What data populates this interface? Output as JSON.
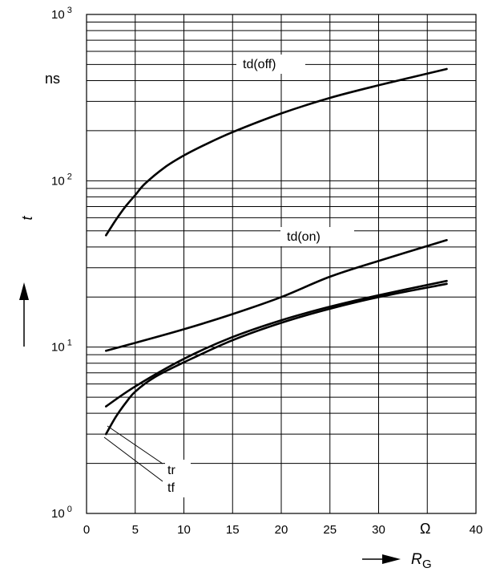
{
  "chart_data": {
    "type": "line",
    "x_scale": "linear",
    "y_scale": "log",
    "xlim": [
      0,
      40
    ],
    "ylim": [
      1,
      1000
    ],
    "grid": true,
    "x_ticks": [
      "0",
      "5",
      "10",
      "15",
      "20",
      "25",
      "30",
      "40"
    ],
    "x_unit": "Ω",
    "xlabel": "R",
    "xlabel_sub": "G",
    "y_ticks": [
      {
        "base": "10",
        "exp": "0",
        "value": 1
      },
      {
        "base": "10",
        "exp": "1",
        "value": 10
      },
      {
        "base": "10",
        "exp": "2",
        "value": 100
      },
      {
        "base": "10",
        "exp": "3",
        "value": 1000
      }
    ],
    "y_unit": "ns",
    "ylabel": "t",
    "series": [
      {
        "name": "td(off)",
        "x": [
          2,
          3,
          4,
          5,
          6,
          8,
          10,
          12,
          15,
          20,
          25,
          30,
          37
        ],
        "y": [
          47,
          58,
          70,
          82,
          96,
          120,
          142,
          163,
          196,
          254,
          315,
          375,
          470
        ]
      },
      {
        "name": "td(on)",
        "x": [
          2,
          5,
          10,
          15,
          20,
          25,
          30,
          37
        ],
        "y": [
          9.5,
          10.6,
          12.8,
          15.8,
          20,
          26.5,
          33,
          44
        ]
      },
      {
        "name": "tr",
        "x": [
          2,
          5,
          10,
          15,
          20,
          25,
          30,
          37
        ],
        "y": [
          4.4,
          5.8,
          8.5,
          11.5,
          14.5,
          17.5,
          20.5,
          25
        ]
      },
      {
        "name": "tf",
        "x": [
          2,
          3,
          4,
          5,
          7,
          10,
          15,
          20,
          25,
          30,
          37
        ],
        "y": [
          3.0,
          3.8,
          4.6,
          5.4,
          6.6,
          8.1,
          11,
          14,
          17,
          20,
          24
        ]
      }
    ]
  }
}
